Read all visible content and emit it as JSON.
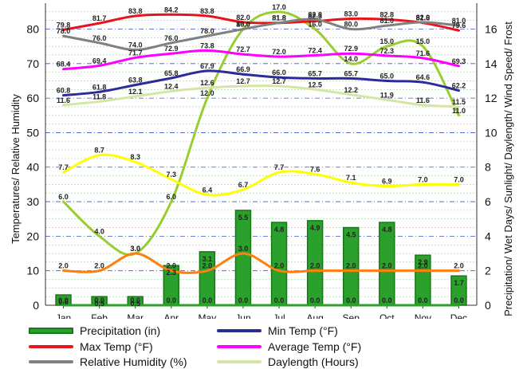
{
  "chart_data": {
    "type": "combo",
    "categories": [
      "Jan",
      "Feb",
      "Mar",
      "Apr",
      "May",
      "Jun",
      "Jul",
      "Aug",
      "Sep",
      "Oct",
      "Nov",
      "Dec"
    ],
    "ylabel_left": "Temperatures/ Relative Humidity",
    "ylabel_right": "Precipitation/ Wet Days/ Sunlight/ Daylength/ Wind Speed/ Frost",
    "yleft_ticks": [
      "0",
      "10",
      "20",
      "30",
      "40",
      "50",
      "60",
      "70",
      "80"
    ],
    "yright_ticks": [
      "0",
      "2",
      "4",
      "6",
      "8",
      "10",
      "12",
      "14",
      "16"
    ],
    "ylim_left": [
      0,
      87.5
    ],
    "ylim_right": [
      0,
      17.5
    ],
    "grid": true,
    "legend_placement": "bottom",
    "series": [
      {
        "key": "precip",
        "name": "Precipitation (in)",
        "type": "bar",
        "axis": "right",
        "color": "#2ca02c",
        "values": [
          0.6,
          0.5,
          0.5,
          2.3,
          3.1,
          5.5,
          4.8,
          4.9,
          4.5,
          4.8,
          2.9,
          1.7
        ]
      },
      {
        "key": "wetdays",
        "type": "line",
        "axis": "right",
        "color": "#2ca02c",
        "values": [
          0.0,
          0.0,
          0.0,
          0.0,
          0.0,
          0.0,
          0.0,
          0.0,
          0.0,
          0.0,
          0.0,
          0.0
        ]
      },
      {
        "key": "frost",
        "type": "line",
        "axis": "right",
        "color": "#9acd32",
        "values": [
          6.0,
          4.0,
          3.0,
          6.0,
          12.0,
          16.0,
          17.0,
          16.0,
          14.0,
          15.0,
          15.0,
          11.0
        ]
      },
      {
        "key": "wind",
        "type": "line",
        "axis": "right",
        "color": "#ff7f0e",
        "values": [
          2.0,
          2.0,
          3.0,
          2.0,
          2.0,
          3.0,
          2.0,
          2.0,
          2.0,
          2.0,
          2.0,
          2.0
        ]
      },
      {
        "key": "sunlight",
        "type": "line",
        "axis": "right",
        "color": "#ffff00",
        "values": [
          7.7,
          8.7,
          8.3,
          7.3,
          6.4,
          6.7,
          7.7,
          7.6,
          7.1,
          6.9,
          7.0,
          7.0
        ]
      },
      {
        "key": "daylength",
        "name": "Daylength (Hours)",
        "type": "line",
        "axis": "right",
        "color": "#d4e6a5",
        "values": [
          11.6,
          11.8,
          12.1,
          12.4,
          12.6,
          12.7,
          12.7,
          12.5,
          12.2,
          11.9,
          11.6,
          11.5
        ]
      },
      {
        "key": "mintemp",
        "name": "Min Temp (°F)",
        "type": "line",
        "axis": "left",
        "color": "#2b2b9a",
        "values": [
          60.8,
          61.8,
          63.8,
          65.8,
          67.9,
          66.9,
          66.0,
          65.7,
          65.7,
          65.0,
          64.6,
          62.2
        ]
      },
      {
        "key": "maxtemp",
        "name": "Max Temp (°F)",
        "type": "line",
        "axis": "left",
        "color": "#e8141b",
        "values": [
          79.8,
          81.7,
          83.8,
          84.2,
          83.8,
          82.0,
          81.8,
          82.3,
          83.0,
          82.8,
          81.8,
          79.6
        ]
      },
      {
        "key": "avgtemp",
        "name": "Average Temp (°F)",
        "type": "line",
        "axis": "left",
        "color": "#ff00ff",
        "values": [
          68.4,
          69.4,
          71.7,
          72.9,
          73.8,
          72.7,
          72.0,
          72.4,
          72.9,
          72.3,
          71.6,
          69.3
        ]
      },
      {
        "key": "humidity",
        "name": "Relative Humidity (%)",
        "type": "line",
        "axis": "left",
        "color": "#808080",
        "values": [
          78.0,
          76.0,
          74.0,
          76.0,
          78.0,
          80.0,
          81.8,
          82.8,
          80.0,
          81.0,
          82.0,
          81.0
        ]
      }
    ]
  },
  "legend": {
    "precip": "Precipitation (in)",
    "mintemp": "Min Temp (°F)",
    "maxtemp": "Max Temp (°F)",
    "avgtemp": "Average Temp (°F)",
    "humidity": "Relative Humidity (%)",
    "daylength": "Daylength (Hours)"
  },
  "colors": {
    "precip": "#2ca02c",
    "mintemp": "#2b2b9a",
    "maxtemp": "#e8141b",
    "avgtemp": "#ff00ff",
    "humidity": "#808080",
    "daylength": "#d4e6a5"
  }
}
